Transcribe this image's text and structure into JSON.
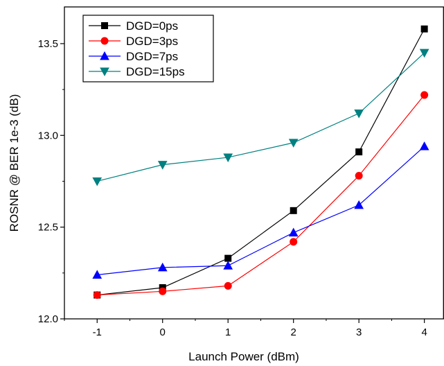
{
  "chart_data": {
    "type": "line",
    "title": "",
    "xlabel": "Launch Power (dBm)",
    "ylabel": "ROSNR @ BER 1e-3 (dB)",
    "x": [
      -1,
      0,
      1,
      2,
      3,
      4
    ],
    "xlim": [
      -1.5,
      4.3
    ],
    "ylim": [
      12.0,
      13.7
    ],
    "xticks": [
      -1,
      0,
      1,
      2,
      3,
      4
    ],
    "yticks": [
      12.0,
      12.5,
      13.0,
      13.5
    ],
    "xtick_labels": [
      "-1",
      "0",
      "1",
      "2",
      "3",
      "4"
    ],
    "ytick_labels": [
      "12.0",
      "12.5",
      "13.0",
      "13.5"
    ],
    "grid": false,
    "legend_position": "top-left",
    "series": [
      {
        "name": "DGD=0ps",
        "color": "#000000",
        "marker": "square",
        "values": [
          12.13,
          12.17,
          12.33,
          12.59,
          12.91,
          13.58
        ]
      },
      {
        "name": "DGD=3ps",
        "color": "#ff0000",
        "marker": "circle",
        "values": [
          12.13,
          12.15,
          12.18,
          12.42,
          12.78,
          13.22
        ]
      },
      {
        "name": "DGD=7ps",
        "color": "#0000ff",
        "marker": "triangle-up",
        "values": [
          12.24,
          12.28,
          12.29,
          12.47,
          12.62,
          12.94
        ]
      },
      {
        "name": "DGD=15ps",
        "color": "#008080",
        "marker": "triangle-down",
        "values": [
          12.75,
          12.84,
          12.88,
          12.96,
          13.12,
          13.45
        ]
      }
    ]
  }
}
